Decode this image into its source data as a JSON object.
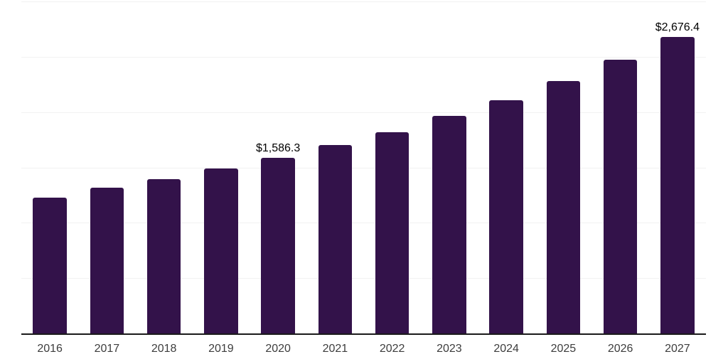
{
  "chart_data": {
    "type": "bar",
    "title": "",
    "xlabel": "",
    "ylabel": "",
    "categories": [
      "2016",
      "2017",
      "2018",
      "2019",
      "2020",
      "2021",
      "2022",
      "2023",
      "2024",
      "2025",
      "2026",
      "2027"
    ],
    "values": [
      1230,
      1315,
      1395,
      1490,
      1586.3,
      1700,
      1820,
      1965,
      2105,
      2280,
      2475,
      2676.4
    ],
    "data_labels": {
      "2020": "$1,586.3",
      "2027": "$2,676.4"
    },
    "ylim": [
      0,
      3000
    ],
    "gridline_step": 500,
    "grid": true,
    "legend": false,
    "y_axis_labels_visible": false,
    "colors": {
      "bar": "#33124A",
      "gridline": "#F1F1F1",
      "axis_line": "#1A1A1A",
      "data_label": "#000000",
      "tick_label": "#3D3D3D",
      "background": "#FFFFFF"
    }
  }
}
